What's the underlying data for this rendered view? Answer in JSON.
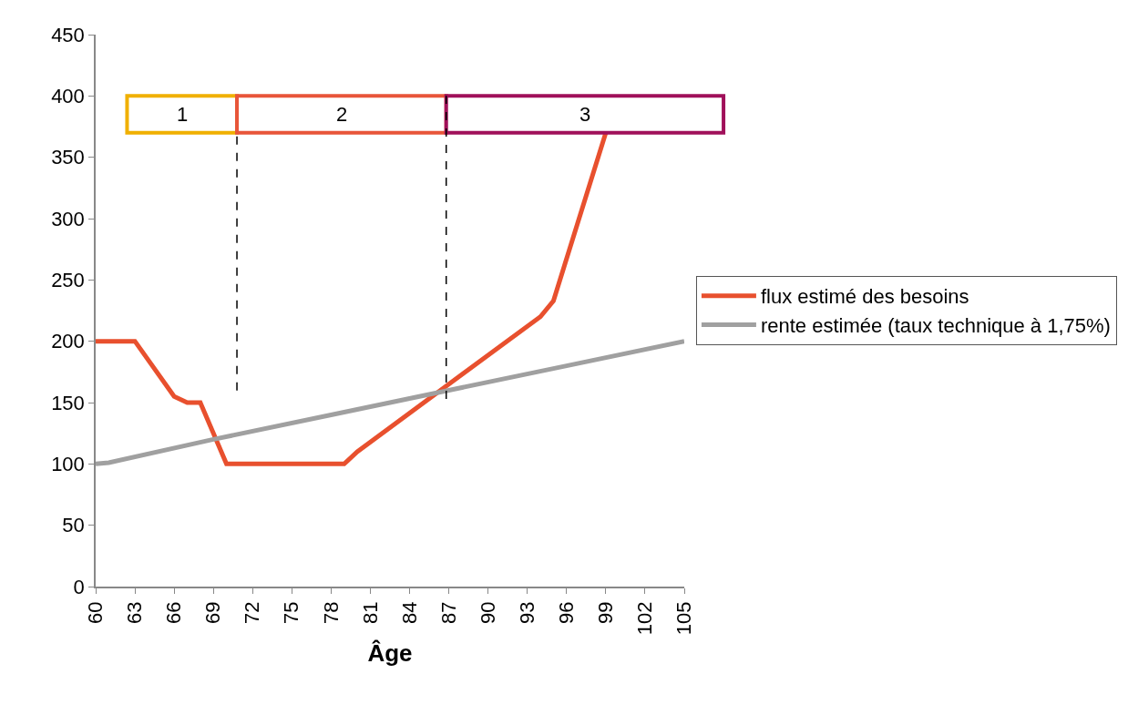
{
  "chart_data": {
    "type": "line",
    "xlabel": "Âge",
    "xlim": [
      60,
      105
    ],
    "xticks": [
      60,
      63,
      66,
      69,
      72,
      75,
      78,
      81,
      84,
      87,
      90,
      93,
      96,
      99,
      102,
      105
    ],
    "ylim": [
      0,
      450
    ],
    "yticks": [
      0,
      50,
      100,
      150,
      200,
      250,
      300,
      350,
      400,
      450
    ],
    "grid": false,
    "legend": "right",
    "line_style": "solid",
    "marker": "none",
    "series": [
      {
        "name": "flux estimé des besoins",
        "color": "#e8502e",
        "x": [
          60,
          63,
          66,
          67,
          68,
          70,
          79,
          80,
          87,
          94,
          95,
          99
        ],
        "values": [
          200,
          200,
          155,
          150,
          150,
          100,
          100,
          110,
          165,
          220,
          233,
          370
        ]
      },
      {
        "name": "rente estimée (taux technique à 1,75%)",
        "color": "#a0a0a0",
        "x": [
          60,
          61,
          69,
          78,
          87,
          96,
          105
        ],
        "values": [
          100,
          101,
          120,
          140,
          160,
          180,
          200
        ]
      }
    ],
    "ref_lines": [
      {
        "axis": "x",
        "value": 70.8,
        "color": "#000000",
        "line_style": "dashed"
      },
      {
        "axis": "x",
        "value": 86.8,
        "color": "#000000",
        "line_style": "dashed"
      }
    ],
    "bands": [
      {
        "axis": "x",
        "from": 62.4,
        "to": 70.8,
        "label": "1",
        "color": "#f0b000"
      },
      {
        "axis": "x",
        "from": 70.8,
        "to": 86.8,
        "label": "2",
        "color": "#e8553a"
      },
      {
        "axis": "x",
        "from": 86.8,
        "to": 108,
        "label": "3",
        "color": "#a0105a"
      }
    ]
  }
}
